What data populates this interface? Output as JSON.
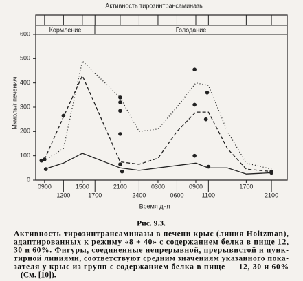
{
  "chart_data": {
    "type": "line",
    "title": "Активность тирозинтрансаминазы",
    "ylabel": "Мкмоль/г печени/ч",
    "xlabel": "Время дня",
    "annotations": [
      "Кормление",
      "Голодание"
    ],
    "x": [
      0,
      3,
      6,
      12,
      15,
      18,
      21,
      24,
      26,
      29,
      32,
      36
    ],
    "xlim": [
      -1.4,
      38.5
    ],
    "xticks": [
      {
        "value": 0,
        "label": "0900"
      },
      {
        "value": 3,
        "label": "1200"
      },
      {
        "value": 6,
        "label": "1500"
      },
      {
        "value": 8,
        "label": "1700"
      },
      {
        "value": 12,
        "label": "2100"
      },
      {
        "value": 15,
        "label": "2400"
      },
      {
        "value": 18,
        "label": "0300"
      },
      {
        "value": 21,
        "label": "0600"
      },
      {
        "value": 24,
        "label": "0900"
      },
      {
        "value": 26,
        "label": "1100"
      },
      {
        "value": 32,
        "label": "1700"
      },
      {
        "value": 36,
        "label": "2100"
      }
    ],
    "ylim": [
      0,
      600
    ],
    "yticks": [
      0,
      100,
      200,
      300,
      400,
      500,
      600
    ],
    "series": [
      {
        "color": "#222",
        "dash": "1,3",
        "values": [
          80,
          130,
          490,
          340,
          200,
          210,
          300,
          400,
          390,
          200,
          70,
          45
        ]
      },
      {
        "color": "#222",
        "dash": "5,3",
        "values": [
          85,
          260,
          430,
          75,
          65,
          90,
          200,
          280,
          280,
          130,
          45,
          35
        ]
      },
      {
        "color": "#222",
        "dash": "none",
        "values": [
          45,
          70,
          110,
          50,
          40,
          50,
          60,
          70,
          50,
          50,
          25,
          30
        ]
      }
    ],
    "points": {
      "color": "#222",
      "x": [
        -0.5,
        0,
        0.2,
        3,
        12,
        12,
        12,
        12,
        12,
        12.3,
        23.8,
        23.8,
        23.8,
        25.8,
        25.6,
        26,
        36,
        36
      ],
      "values": [
        80,
        85,
        45,
        265,
        340,
        320,
        285,
        190,
        65,
        35,
        455,
        310,
        100,
        360,
        250,
        55,
        35,
        30
      ]
    }
  },
  "caption": {
    "figure": "Рис. 9.3.",
    "lines": [
      "Активность тирозинтрансаминазы в печени крыс (линия Holtzman),",
      "адаптированных к режиму «8 + 40» с содержанием белка в пище 12,",
      "30 и 60%. Фигуры, соединенные непрерывной, прерывистой и пунк-",
      "тирной линиями, соответствуют средним значениям указанного пока-",
      "зателя у крыс из групп с содержанием белка в пище — 12, 30 и 60%",
      "(См. [10])."
    ]
  }
}
